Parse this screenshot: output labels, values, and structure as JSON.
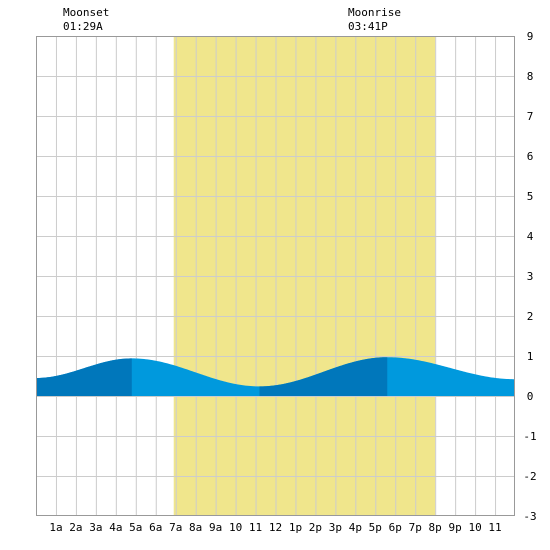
{
  "moon_events": [
    {
      "label": "Moonset",
      "time": "01:29A"
    },
    {
      "label": "Moonrise",
      "time": "03:41P"
    }
  ],
  "colors": {
    "daylight": "#f0e68c",
    "tide_light": "#0099dd",
    "tide_dark": "#0077bb",
    "grid": "#cccccc",
    "frame": "#999999",
    "background": "#ffffff"
  },
  "chart_data": {
    "type": "area",
    "title": "",
    "xlabel": "",
    "ylabel": "",
    "x_ticks": [
      "1a",
      "2a",
      "3a",
      "4a",
      "5a",
      "6a",
      "7a",
      "8a",
      "9a",
      "10",
      "11",
      "12",
      "1p",
      "2p",
      "3p",
      "4p",
      "5p",
      "6p",
      "7p",
      "8p",
      "9p",
      "10",
      "11"
    ],
    "xlim": [
      0,
      24
    ],
    "y_ticks": [
      "-3",
      "-2",
      "-1",
      "0",
      "1",
      "2",
      "3",
      "4",
      "5",
      "6",
      "7",
      "8",
      "9"
    ],
    "ylim": [
      -3,
      9
    ],
    "grid": true,
    "daylight_hours": [
      6.9,
      20.0
    ],
    "moonset_hour": 1.48,
    "moonrise_hour": 15.68,
    "tide_extremes": [
      {
        "hour": 0,
        "height": 0.45
      },
      {
        "hour": 4.8,
        "height": 0.94
      },
      {
        "hour": 11.2,
        "height": 0.24
      },
      {
        "hour": 17.6,
        "height": 0.97
      },
      {
        "hour": 24,
        "height": 0.42
      }
    ],
    "dark_bands": [
      [
        0,
        4.8
      ],
      [
        11.2,
        17.6
      ]
    ]
  }
}
